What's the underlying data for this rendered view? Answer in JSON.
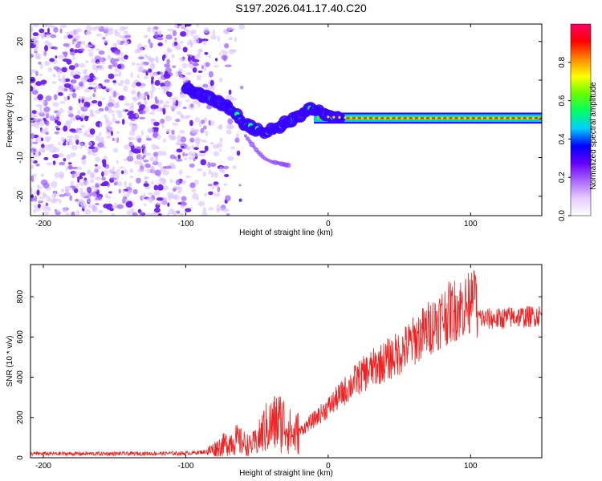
{
  "title": "S197.2026.041.17.40.C20",
  "chart_data": [
    {
      "type": "heatmap",
      "xlabel": "Height of straight line (km)",
      "ylabel": "Frequency (Hz)",
      "xlim": [
        -209,
        150
      ],
      "ylim": [
        -25,
        24.5
      ],
      "xticks": [
        -200,
        -100,
        0,
        100
      ],
      "yticks": [
        20,
        10,
        0,
        -10,
        -20
      ],
      "grid": false,
      "ridge": {
        "description": "dominant frequency track",
        "points_x": [
          -100,
          -90,
          -80,
          -70,
          -65,
          -60,
          -55,
          -50,
          -45,
          -40,
          -35,
          -30,
          -25,
          -20,
          -15,
          -10,
          -5,
          0,
          20,
          50,
          100,
          150
        ],
        "points_y": [
          8,
          6,
          5,
          3,
          1,
          -1,
          -2,
          -3,
          -3.5,
          -3,
          -2,
          -1,
          0,
          1,
          2,
          2.5,
          1.5,
          0.5,
          0.2,
          0.2,
          0.2,
          0.2
        ]
      },
      "colorbar": {
        "label": "Normalized spectral amplitude",
        "range": [
          0.0,
          1.0
        ],
        "ticks": [
          "0.0",
          "0.2",
          "0.4",
          "0.6",
          "0.8"
        ],
        "colormap": [
          "#ffffff",
          "#e6ccff",
          "#aa66ff",
          "#6600ff",
          "#0000ff",
          "#00ccff",
          "#00ff66",
          "#66ff00",
          "#ffff00",
          "#ff8800",
          "#ff0000",
          "#ff0066"
        ]
      }
    },
    {
      "type": "line",
      "xlabel": "Height of straight line (km)",
      "ylabel": "SNR (10 * v/v)",
      "xlim": [
        -209,
        150
      ],
      "ylim": [
        0,
        960
      ],
      "xticks": [
        -200,
        -100,
        0,
        100
      ],
      "yticks": [
        0,
        200,
        400,
        600,
        800
      ],
      "series": [
        {
          "name": "SNR",
          "color": "#ee2222",
          "x": [
            -209,
            -150,
            -100,
            -85,
            -75,
            -65,
            -55,
            -50,
            -45,
            -40,
            -35,
            -30,
            -25,
            -20,
            -15,
            -10,
            0,
            10,
            20,
            30,
            40,
            50,
            60,
            70,
            80,
            90,
            100,
            103,
            105,
            110,
            120,
            130,
            140,
            150
          ],
          "values": [
            20,
            20,
            22,
            30,
            60,
            90,
            60,
            80,
            140,
            160,
            180,
            170,
            110,
            130,
            160,
            190,
            250,
            320,
            390,
            440,
            480,
            520,
            580,
            640,
            700,
            740,
            760,
            780,
            700,
            690,
            690,
            700,
            700,
            710
          ]
        }
      ]
    }
  ]
}
